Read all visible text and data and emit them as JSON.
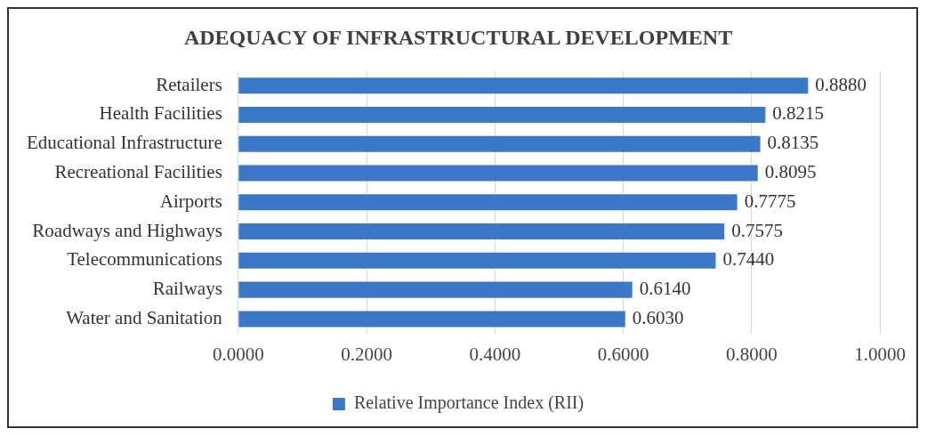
{
  "chart_data": {
    "type": "bar",
    "orientation": "horizontal",
    "title": "ADEQUACY OF INFRASTRUCTURAL DEVELOPMENT",
    "categories": [
      "Retailers",
      "Health Facilities",
      "Educational Infrastructure",
      "Recreational Facilities",
      "Airports",
      "Roadways and Highways",
      "Telecommunications",
      "Railways",
      "Water and Sanitation"
    ],
    "series": [
      {
        "name": "Relative Importance Index (RII)",
        "color": "#3b78c8",
        "values": [
          0.888,
          0.8215,
          0.8135,
          0.8095,
          0.7775,
          0.7575,
          0.744,
          0.614,
          0.603
        ],
        "value_labels": [
          "0.8880",
          "0.8215",
          "0.8135",
          "0.8095",
          "0.7775",
          "0.7575",
          "0.7440",
          "0.6140",
          "0.6030"
        ]
      }
    ],
    "xlim": [
      0,
      1
    ],
    "xticks": [
      {
        "value": 0,
        "label": "0.0000"
      },
      {
        "value": 0.2,
        "label": "0.2000"
      },
      {
        "value": 0.4,
        "label": "0.4000"
      },
      {
        "value": 0.6,
        "label": "0.6000"
      },
      {
        "value": 0.8,
        "label": "0.8000"
      },
      {
        "value": 1,
        "label": "1.0000"
      }
    ],
    "grid": "x",
    "legend": "bottom"
  }
}
